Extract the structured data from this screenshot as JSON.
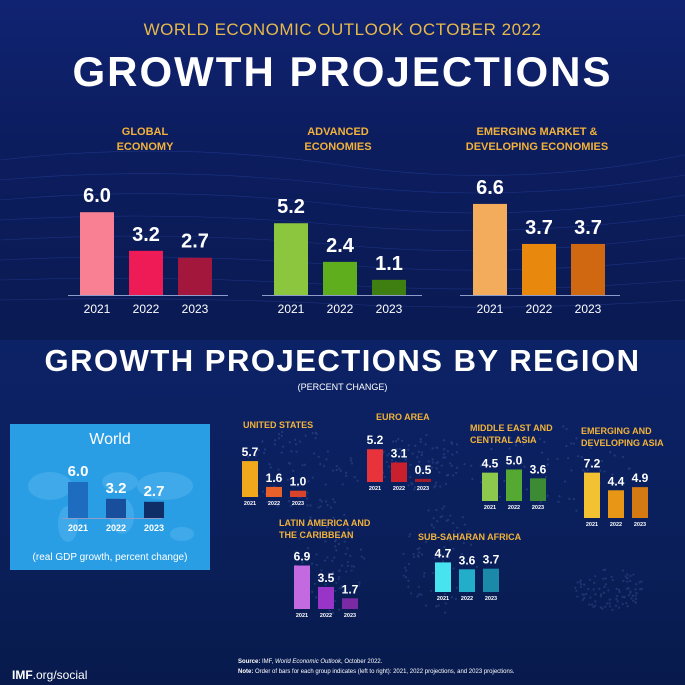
{
  "header": {
    "subtitle": "WORLD ECONOMIC OUTLOOK OCTOBER 2022",
    "title": "GROWTH PROJECTIONS"
  },
  "region_section": {
    "title": "GROWTH PROJECTIONS BY REGION",
    "unit": "(PERCENT CHANGE)"
  },
  "world_box": {
    "title": "World",
    "note": "(real GDP growth, percent change)"
  },
  "footer": {
    "source_label": "Source:",
    "source_text": "IMF, ",
    "source_italic": "World Economic Outlook",
    "source_tail": ", October 2022.",
    "note_label": "Note:",
    "note_text": "Order of bars for each group indicates (left to right): 2021, 2022 projections, and 2023 projections.",
    "imf_bold": "IMF",
    "imf_rest": ".org/social"
  },
  "chart_data": [
    {
      "id": "global",
      "type": "bar",
      "title_lines": [
        "GLOBAL",
        "ECONOMY"
      ],
      "categories": [
        "2021",
        "2022",
        "2023"
      ],
      "values": [
        6.0,
        3.2,
        2.7
      ],
      "labels": [
        "6.0",
        "3.2",
        "2.7"
      ],
      "colors": [
        "#f97f93",
        "#ee1b57",
        "#a3173d"
      ],
      "ylim": [
        0,
        7
      ]
    },
    {
      "id": "advanced",
      "type": "bar",
      "title_lines": [
        "ADVANCED",
        "ECONOMIES"
      ],
      "categories": [
        "2021",
        "2022",
        "2023"
      ],
      "values": [
        5.2,
        2.4,
        1.1
      ],
      "labels": [
        "5.2",
        "2.4",
        "1.1"
      ],
      "colors": [
        "#8cc63f",
        "#5fae1d",
        "#3f7f12"
      ],
      "ylim": [
        0,
        7
      ]
    },
    {
      "id": "emerging",
      "type": "bar",
      "title_lines": [
        "EMERGING MARKET &",
        "DEVELOPING ECONOMIES"
      ],
      "categories": [
        "2021",
        "2022",
        "2023"
      ],
      "values": [
        6.6,
        3.7,
        3.7
      ],
      "labels": [
        "6.6",
        "3.7",
        "3.7"
      ],
      "colors": [
        "#f2ac5b",
        "#e8890e",
        "#cf6810"
      ],
      "ylim": [
        0,
        7
      ]
    },
    {
      "id": "world",
      "type": "bar",
      "title": "World",
      "categories": [
        "2021",
        "2022",
        "2023"
      ],
      "values": [
        6.0,
        3.2,
        2.7
      ],
      "labels": [
        "6.0",
        "3.2",
        "2.7"
      ],
      "colors": [
        "#1e6cc0",
        "#174f9c",
        "#0f2d67"
      ],
      "ylim": [
        0,
        7
      ]
    },
    {
      "id": "united_states",
      "type": "bar",
      "title_lines": [
        "UNITED STATES"
      ],
      "categories": [
        "2021",
        "2022",
        "2023"
      ],
      "values": [
        5.7,
        1.6,
        1.0
      ],
      "labels": [
        "5.7",
        "1.6",
        "1.0"
      ],
      "colors": [
        "#f0a81c",
        "#e8602a",
        "#d8432b"
      ],
      "ylim": [
        0,
        7.5
      ]
    },
    {
      "id": "euro_area",
      "type": "bar",
      "title_lines": [
        "EURO AREA"
      ],
      "categories": [
        "2021",
        "2022",
        "2023"
      ],
      "values": [
        5.2,
        3.1,
        0.5
      ],
      "labels": [
        "5.2",
        "3.1",
        "0.5"
      ],
      "colors": [
        "#e8333a",
        "#c9202e",
        "#a31a2a"
      ],
      "ylim": [
        0,
        7.5
      ]
    },
    {
      "id": "mena_central_asia",
      "type": "bar",
      "title_lines": [
        "MIDDLE EAST AND",
        "CENTRAL ASIA"
      ],
      "categories": [
        "2021",
        "2022",
        "2023"
      ],
      "values": [
        4.5,
        5.0,
        3.6
      ],
      "labels": [
        "4.5",
        "5.0",
        "3.6"
      ],
      "colors": [
        "#8cc94c",
        "#55a832",
        "#3c8a34"
      ],
      "ylim": [
        0,
        7.5
      ]
    },
    {
      "id": "emerging_developing_asia",
      "type": "bar",
      "title_lines": [
        "EMERGING AND",
        "DEVELOPING ASIA"
      ],
      "categories": [
        "2021",
        "2022",
        "2023"
      ],
      "values": [
        7.2,
        4.4,
        4.9
      ],
      "labels": [
        "7.2",
        "4.4",
        "4.9"
      ],
      "colors": [
        "#f2c232",
        "#e89616",
        "#d57a12"
      ],
      "ylim": [
        0,
        7.5
      ]
    },
    {
      "id": "latin_america_caribbean",
      "type": "bar",
      "title_lines": [
        "LATIN AMERICA AND",
        "THE CARIBBEAN"
      ],
      "categories": [
        "2021",
        "2022",
        "2023"
      ],
      "values": [
        6.9,
        3.5,
        1.7
      ],
      "labels": [
        "6.9",
        "3.5",
        "1.7"
      ],
      "colors": [
        "#c46ae0",
        "#9934c8",
        "#7a2aa3"
      ],
      "ylim": [
        0,
        7.5
      ]
    },
    {
      "id": "sub_saharan_africa",
      "type": "bar",
      "title_lines": [
        "SUB-SAHARAN AFRICA"
      ],
      "categories": [
        "2021",
        "2022",
        "2023"
      ],
      "values": [
        4.7,
        3.6,
        3.7
      ],
      "labels": [
        "4.7",
        "3.6",
        "3.7"
      ],
      "colors": [
        "#47e3ef",
        "#22aec8",
        "#1a8aa8"
      ],
      "ylim": [
        0,
        7.5
      ]
    }
  ]
}
